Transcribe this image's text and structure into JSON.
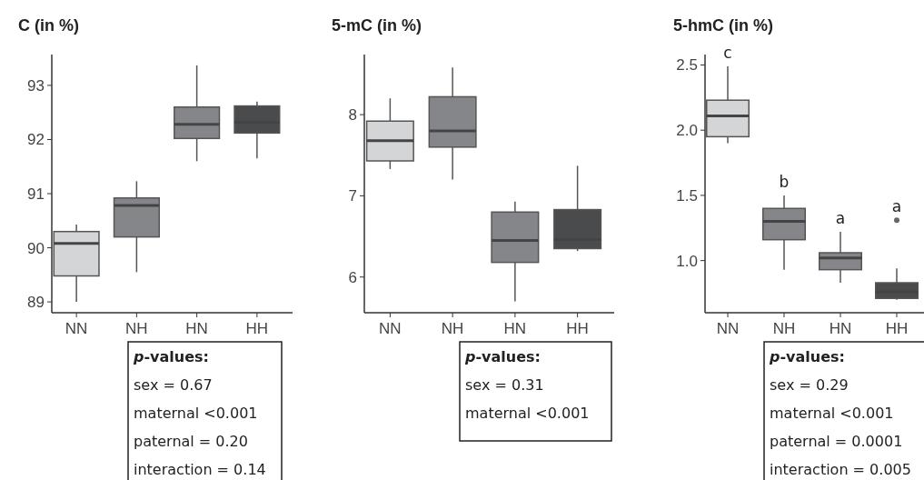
{
  "chart_data": [
    {
      "type": "box",
      "title": "C (in %)",
      "categories": [
        "NN",
        "NH",
        "HN",
        "HH"
      ],
      "colors": [
        "#d4d5d7",
        "#85868a",
        "#85868a",
        "#4a4b4d"
      ],
      "ylim": [
        88.8,
        93.57
      ],
      "yticks": [
        89,
        90,
        91,
        92,
        93
      ],
      "boxes": [
        {
          "low": 89.0,
          "q1": 89.48,
          "median": 90.08,
          "q3": 90.3,
          "high": 90.43
        },
        {
          "low": 89.55,
          "q1": 90.2,
          "median": 90.78,
          "q3": 90.92,
          "high": 91.23
        },
        {
          "low": 91.6,
          "q1": 92.02,
          "median": 92.28,
          "q3": 92.6,
          "high": 93.37
        },
        {
          "low": 91.65,
          "q1": 92.12,
          "median": 92.32,
          "q3": 92.62,
          "high": 92.7
        }
      ],
      "annotations": [
        "p-values:",
        "sex = 0.67",
        "maternal <0.001",
        "paternal = 0.20",
        "interaction = 0.14"
      ]
    },
    {
      "type": "box",
      "title": "5-mC (in %)",
      "categories": [
        "NN",
        "NH",
        "HN",
        "HH"
      ],
      "colors": [
        "#d4d5d7",
        "#85868a",
        "#85868a",
        "#4a4b4d"
      ],
      "ylim": [
        5.56,
        8.74
      ],
      "yticks": [
        6,
        7,
        8
      ],
      "boxes": [
        {
          "low": 7.33,
          "q1": 7.43,
          "median": 7.68,
          "q3": 7.92,
          "high": 8.2
        },
        {
          "low": 7.2,
          "q1": 7.6,
          "median": 7.8,
          "q3": 8.22,
          "high": 8.58
        },
        {
          "low": 5.7,
          "q1": 6.18,
          "median": 6.45,
          "q3": 6.8,
          "high": 6.93
        },
        {
          "low": 6.32,
          "q1": 6.35,
          "median": 6.46,
          "q3": 6.83,
          "high": 7.37
        }
      ],
      "annotations": [
        "p-values:",
        "sex = 0.31",
        "maternal <0.001"
      ]
    },
    {
      "type": "box",
      "title": "5-hmC (in %)",
      "categories": [
        "NN",
        "NH",
        "HN",
        "HH"
      ],
      "colors": [
        "#d4d5d7",
        "#85868a",
        "#85868a",
        "#4a4b4d"
      ],
      "ylim": [
        0.6,
        2.58
      ],
      "yticks": [
        {
          "value": 1,
          "label": "1.0"
        },
        1.5,
        {
          "value": 2,
          "label": "2.0"
        },
        2.5
      ],
      "boxes": [
        {
          "low": 1.9,
          "q1": 1.95,
          "median": 2.11,
          "q3": 2.23,
          "high": 2.49
        },
        {
          "low": 0.93,
          "q1": 1.16,
          "median": 1.3,
          "q3": 1.4,
          "high": 1.5
        },
        {
          "low": 0.83,
          "q1": 0.93,
          "median": 1.02,
          "q3": 1.06,
          "high": 1.22
        },
        {
          "low": 0.7,
          "q1": 0.71,
          "median": 0.76,
          "q3": 0.83,
          "high": 0.94,
          "outliers": [
            1.31
          ]
        }
      ],
      "annotations": [
        "c",
        "b",
        "a",
        "a",
        "p-values:",
        "sex = 0.29",
        "maternal <0.001",
        "paternal = 0.0001",
        "interaction = 0.005"
      ]
    }
  ]
}
